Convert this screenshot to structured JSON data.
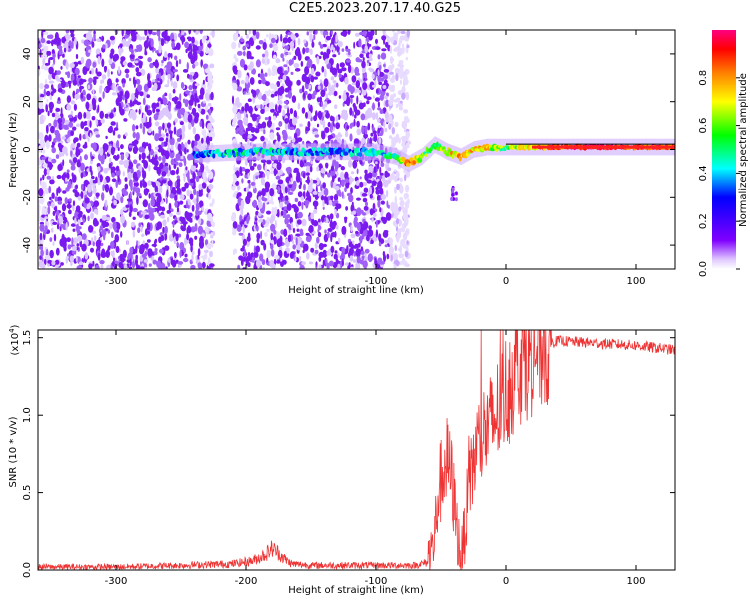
{
  "page_title": "C2E5.2023.207.17.40.G25",
  "chart_data": [
    {
      "type": "heatmap",
      "title": "C2E5.2023.207.17.40.G25",
      "xlabel": "Height of straight line (km)",
      "ylabel": "Frequency (Hz)",
      "xlim": [
        -360,
        130
      ],
      "ylim": [
        -50,
        50
      ],
      "xticks": [
        -300,
        -200,
        -100,
        0,
        100
      ],
      "yticks": [
        -40,
        -20,
        0,
        20,
        40
      ],
      "colorbar": {
        "label": "Normalized spectral amplitude",
        "range": [
          0.0,
          1.0
        ],
        "ticks": [
          0.0,
          0.2,
          0.4,
          0.6,
          0.8
        ]
      },
      "noise_regions_km": [
        [
          -360,
          -225
        ],
        [
          -210,
          -182
        ],
        [
          -182,
          -75
        ]
      ],
      "signal_track": {
        "x": [
          -240,
          -200,
          -150,
          -100,
          -85,
          -75,
          -65,
          -55,
          -45,
          -35,
          -25,
          -15,
          0,
          20,
          50,
          80,
          100,
          130
        ],
        "y": [
          -2,
          -1,
          -1,
          -1,
          -3,
          -6,
          -3,
          2,
          -1,
          -3,
          0,
          1,
          1,
          1,
          1,
          1,
          1,
          1
        ],
        "amplitude": [
          0.35,
          0.45,
          0.35,
          0.4,
          0.5,
          0.85,
          0.6,
          0.5,
          0.7,
          0.8,
          0.75,
          0.7,
          0.55,
          0.75,
          0.9,
          0.95,
          0.85,
          0.9
        ]
      }
    },
    {
      "type": "line",
      "xlabel": "Height of straight line (km)",
      "ylabel": "SNR (10 * v/v)",
      "yscale_label": "(x10",
      "yscale_exp": "4",
      "xlim": [
        -360,
        130
      ],
      "ylim": [
        0,
        1.55
      ],
      "xticks": [
        -300,
        -200,
        -100,
        0,
        100
      ],
      "yticks": [
        0.0,
        0.5,
        1.0,
        1.5
      ],
      "line_color": "#ee3333",
      "series": [
        {
          "x": [
            -360,
            -300,
            -250,
            -210,
            -195,
            -185,
            -180,
            -175,
            -170,
            -165,
            -150,
            -120,
            -90,
            -70,
            -60,
            -55,
            -52,
            -48,
            -45,
            -42,
            -40,
            -38,
            -36,
            -34,
            -30,
            -25,
            -20,
            -15,
            -10,
            -5,
            0,
            5,
            10,
            20,
            30,
            40,
            60,
            80,
            100,
            110,
            120,
            130
          ],
          "y": [
            0.02,
            0.02,
            0.03,
            0.04,
            0.06,
            0.1,
            0.14,
            0.11,
            0.07,
            0.04,
            0.03,
            0.03,
            0.03,
            0.03,
            0.05,
            0.2,
            0.5,
            0.65,
            0.7,
            0.6,
            0.45,
            0.3,
            0.15,
            0.08,
            0.4,
            0.7,
            0.85,
            0.9,
            0.95,
            1.05,
            1.15,
            1.25,
            1.35,
            1.42,
            1.46,
            1.48,
            1.47,
            1.46,
            1.45,
            1.44,
            1.43,
            1.42
          ]
        }
      ]
    }
  ]
}
